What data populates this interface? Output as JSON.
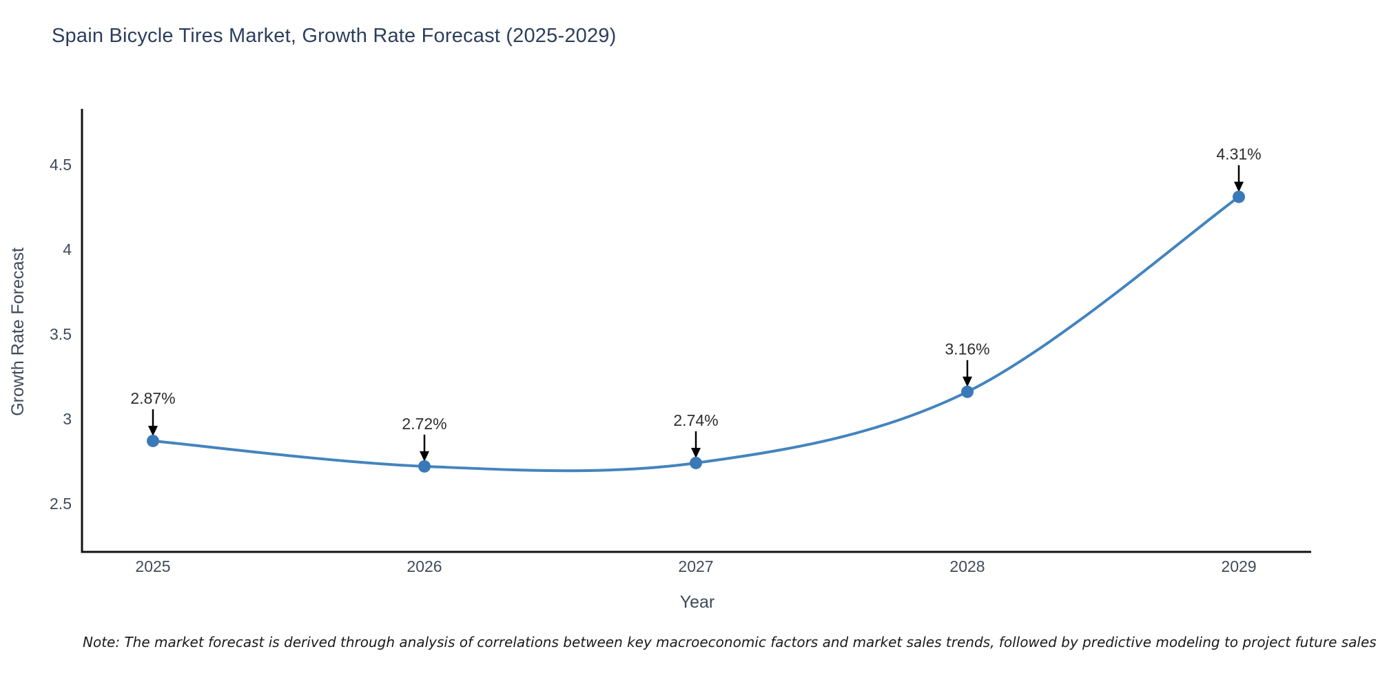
{
  "title": "Spain Bicycle Tires Market, Growth Rate Forecast (2025-2029)",
  "note": "Note: The market forecast is derived through analysis of correlations between key macroeconomic factors and market sales trends, followed by predictive modeling to project future sales",
  "chart_data": {
    "type": "line",
    "title": "Spain Bicycle Tires Market, Growth Rate Forecast (2025-2029)",
    "x": [
      2025,
      2026,
      2027,
      2028,
      2029
    ],
    "values": [
      2.87,
      2.72,
      2.74,
      3.16,
      4.31
    ],
    "point_labels": [
      "2.87%",
      "2.72%",
      "2.74%",
      "3.16%",
      "4.31%"
    ],
    "xticks": [
      "2025",
      "2026",
      "2027",
      "2028",
      "2029"
    ],
    "yticks": [
      2.5,
      3,
      3.5,
      4,
      4.5
    ],
    "xlabel": "Year",
    "ylabel": "Growth Rate Forecast",
    "ylim": [
      2.22,
      4.83
    ],
    "grid": false,
    "legend": "none",
    "line_color": "#4384be",
    "marker_color": "#3a79b8",
    "axis_color": "#111111",
    "tick_color": "#3f4a5a",
    "annotation_text_color": "#2d2d2d",
    "annotation_arrow_color": "#000000"
  }
}
